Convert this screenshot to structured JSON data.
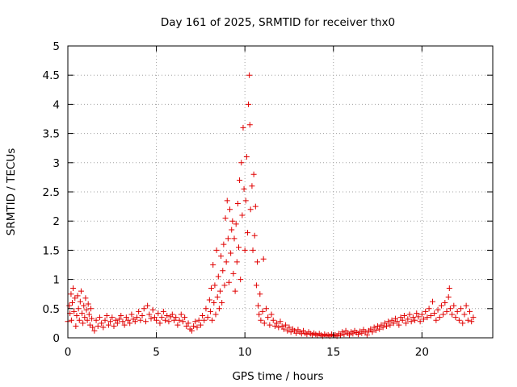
{
  "chart_data": {
    "type": "scatter",
    "title": "Day 161 of 2025, SRMTID for receiver thx0",
    "xlabel": "GPS time / hours",
    "ylabel": "SRMTID / TECUs",
    "xlim": [
      0,
      24
    ],
    "ylim": [
      0,
      5
    ],
    "xticks": [
      0,
      5,
      10,
      15,
      20
    ],
    "xtick_labels": [
      "0",
      "5",
      "10",
      "15",
      "20"
    ],
    "yticks": [
      0,
      0.5,
      1,
      1.5,
      2,
      2.5,
      3,
      3.5,
      4,
      4.5,
      5
    ],
    "ytick_labels": [
      "0",
      "0.5",
      "1",
      "1.5",
      "2",
      "2.5",
      "3",
      "3.5",
      "4",
      "4.5",
      "5"
    ],
    "grid": true,
    "marker": "+",
    "series": [
      {
        "name": "SRMTID",
        "color": "#e00000",
        "points": [
          [
            0.0,
            0.28
          ],
          [
            0.08,
            0.55
          ],
          [
            0.12,
            0.42
          ],
          [
            0.18,
            0.75
          ],
          [
            0.2,
            0.3
          ],
          [
            0.25,
            0.6
          ],
          [
            0.3,
            0.85
          ],
          [
            0.35,
            0.45
          ],
          [
            0.4,
            0.68
          ],
          [
            0.45,
            0.2
          ],
          [
            0.5,
            0.38
          ],
          [
            0.55,
            0.72
          ],
          [
            0.6,
            0.5
          ],
          [
            0.65,
            0.3
          ],
          [
            0.7,
            0.62
          ],
          [
            0.75,
            0.8
          ],
          [
            0.8,
            0.42
          ],
          [
            0.85,
            0.25
          ],
          [
            0.9,
            0.55
          ],
          [
            0.95,
            0.35
          ],
          [
            1.0,
            0.68
          ],
          [
            1.05,
            0.48
          ],
          [
            1.1,
            0.3
          ],
          [
            1.15,
            0.58
          ],
          [
            1.2,
            0.4
          ],
          [
            1.25,
            0.22
          ],
          [
            1.3,
            0.5
          ],
          [
            1.35,
            0.33
          ],
          [
            1.4,
            0.18
          ],
          [
            1.5,
            0.12
          ],
          [
            1.6,
            0.3
          ],
          [
            1.7,
            0.2
          ],
          [
            1.8,
            0.35
          ],
          [
            1.9,
            0.25
          ],
          [
            2.0,
            0.18
          ],
          [
            2.1,
            0.3
          ],
          [
            2.2,
            0.38
          ],
          [
            2.3,
            0.22
          ],
          [
            2.4,
            0.28
          ],
          [
            2.5,
            0.35
          ],
          [
            2.6,
            0.2
          ],
          [
            2.7,
            0.3
          ],
          [
            2.8,
            0.25
          ],
          [
            2.9,
            0.32
          ],
          [
            3.0,
            0.38
          ],
          [
            3.1,
            0.28
          ],
          [
            3.2,
            0.22
          ],
          [
            3.3,
            0.35
          ],
          [
            3.4,
            0.3
          ],
          [
            3.5,
            0.25
          ],
          [
            3.6,
            0.4
          ],
          [
            3.7,
            0.32
          ],
          [
            3.8,
            0.28
          ],
          [
            3.9,
            0.35
          ],
          [
            4.0,
            0.45
          ],
          [
            4.1,
            0.3
          ],
          [
            4.2,
            0.38
          ],
          [
            4.3,
            0.5
          ],
          [
            4.4,
            0.28
          ],
          [
            4.5,
            0.55
          ],
          [
            4.6,
            0.4
          ],
          [
            4.7,
            0.33
          ],
          [
            4.8,
            0.48
          ],
          [
            4.9,
            0.35
          ],
          [
            5.0,
            0.3
          ],
          [
            5.1,
            0.42
          ],
          [
            5.2,
            0.25
          ],
          [
            5.3,
            0.35
          ],
          [
            5.4,
            0.45
          ],
          [
            5.5,
            0.3
          ],
          [
            5.6,
            0.38
          ],
          [
            5.7,
            0.28
          ],
          [
            5.8,
            0.36
          ],
          [
            5.9,
            0.4
          ],
          [
            6.0,
            0.3
          ],
          [
            6.1,
            0.35
          ],
          [
            6.2,
            0.22
          ],
          [
            6.3,
            0.3
          ],
          [
            6.4,
            0.4
          ],
          [
            6.5,
            0.28
          ],
          [
            6.6,
            0.35
          ],
          [
            6.7,
            0.2
          ],
          [
            6.8,
            0.25
          ],
          [
            6.9,
            0.15
          ],
          [
            7.0,
            0.12
          ],
          [
            7.1,
            0.2
          ],
          [
            7.2,
            0.28
          ],
          [
            7.3,
            0.18
          ],
          [
            7.4,
            0.3
          ],
          [
            7.5,
            0.22
          ],
          [
            7.6,
            0.38
          ],
          [
            7.7,
            0.3
          ],
          [
            7.8,
            0.5
          ],
          [
            7.9,
            0.35
          ],
          [
            8.0,
            0.65
          ],
          [
            8.05,
            0.45
          ],
          [
            8.1,
            0.85
          ],
          [
            8.15,
            0.3
          ],
          [
            8.2,
            1.25
          ],
          [
            8.25,
            0.6
          ],
          [
            8.3,
            0.9
          ],
          [
            8.35,
            0.4
          ],
          [
            8.4,
            1.5
          ],
          [
            8.45,
            0.7
          ],
          [
            8.5,
            1.05
          ],
          [
            8.55,
            0.5
          ],
          [
            8.6,
            0.8
          ],
          [
            8.65,
            1.4
          ],
          [
            8.7,
            0.6
          ],
          [
            8.75,
            1.15
          ],
          [
            8.8,
            1.6
          ],
          [
            8.85,
            0.9
          ],
          [
            8.9,
            2.05
          ],
          [
            8.95,
            1.3
          ],
          [
            9.0,
            2.35
          ],
          [
            9.05,
            1.7
          ],
          [
            9.1,
            0.95
          ],
          [
            9.15,
            2.2
          ],
          [
            9.2,
            1.45
          ],
          [
            9.25,
            1.85
          ],
          [
            9.3,
            2.0
          ],
          [
            9.35,
            1.1
          ],
          [
            9.4,
            1.7
          ],
          [
            9.45,
            0.8
          ],
          [
            9.5,
            1.95
          ],
          [
            9.55,
            1.3
          ],
          [
            9.6,
            2.3
          ],
          [
            9.65,
            1.55
          ],
          [
            9.7,
            2.7
          ],
          [
            9.75,
            1.0
          ],
          [
            9.8,
            3.0
          ],
          [
            9.85,
            2.1
          ],
          [
            9.9,
            3.6
          ],
          [
            9.95,
            2.55
          ],
          [
            10.0,
            1.5
          ],
          [
            10.05,
            2.35
          ],
          [
            10.1,
            3.1
          ],
          [
            10.15,
            1.8
          ],
          [
            10.2,
            4.0
          ],
          [
            10.25,
            4.5
          ],
          [
            10.28,
            3.65
          ],
          [
            10.32,
            2.2
          ],
          [
            10.4,
            2.6
          ],
          [
            10.45,
            1.5
          ],
          [
            10.5,
            2.8
          ],
          [
            10.55,
            1.75
          ],
          [
            10.6,
            2.25
          ],
          [
            10.65,
            0.9
          ],
          [
            10.7,
            1.3
          ],
          [
            10.75,
            0.55
          ],
          [
            10.8,
            0.4
          ],
          [
            10.85,
            0.75
          ],
          [
            10.9,
            0.3
          ],
          [
            11.0,
            0.45
          ],
          [
            11.05,
            1.35
          ],
          [
            11.1,
            0.25
          ],
          [
            11.2,
            0.5
          ],
          [
            11.3,
            0.35
          ],
          [
            11.4,
            0.22
          ],
          [
            11.5,
            0.4
          ],
          [
            11.6,
            0.3
          ],
          [
            11.7,
            0.2
          ],
          [
            11.8,
            0.25
          ],
          [
            11.9,
            0.18
          ],
          [
            12.0,
            0.28
          ],
          [
            12.1,
            0.2
          ],
          [
            12.2,
            0.15
          ],
          [
            12.3,
            0.22
          ],
          [
            12.4,
            0.12
          ],
          [
            12.5,
            0.18
          ],
          [
            12.6,
            0.1
          ],
          [
            12.7,
            0.15
          ],
          [
            12.8,
            0.12
          ],
          [
            12.9,
            0.08
          ],
          [
            13.0,
            0.14
          ],
          [
            13.1,
            0.1
          ],
          [
            13.2,
            0.07
          ],
          [
            13.3,
            0.12
          ],
          [
            13.4,
            0.08
          ],
          [
            13.5,
            0.06
          ],
          [
            13.6,
            0.1
          ],
          [
            13.7,
            0.07
          ],
          [
            13.8,
            0.05
          ],
          [
            13.9,
            0.08
          ],
          [
            14.0,
            0.06
          ],
          [
            14.1,
            0.04
          ],
          [
            14.2,
            0.07
          ],
          [
            14.3,
            0.05
          ],
          [
            14.4,
            0.03
          ],
          [
            14.5,
            0.06
          ],
          [
            14.6,
            0.04
          ],
          [
            14.7,
            0.05
          ],
          [
            14.8,
            0.03
          ],
          [
            14.9,
            0.06
          ],
          [
            15.0,
            0.04
          ],
          [
            15.1,
            0.05
          ],
          [
            15.2,
            0.03
          ],
          [
            15.3,
            0.07
          ],
          [
            15.4,
            0.04
          ],
          [
            15.5,
            0.1
          ],
          [
            15.6,
            0.06
          ],
          [
            15.7,
            0.12
          ],
          [
            15.8,
            0.08
          ],
          [
            15.9,
            0.05
          ],
          [
            16.0,
            0.1
          ],
          [
            16.1,
            0.07
          ],
          [
            16.2,
            0.12
          ],
          [
            16.3,
            0.09
          ],
          [
            16.4,
            0.06
          ],
          [
            16.5,
            0.11
          ],
          [
            16.6,
            0.08
          ],
          [
            16.7,
            0.14
          ],
          [
            16.8,
            0.1
          ],
          [
            16.9,
            0.05
          ],
          [
            17.0,
            0.12
          ],
          [
            17.1,
            0.15
          ],
          [
            17.2,
            0.1
          ],
          [
            17.3,
            0.18
          ],
          [
            17.4,
            0.13
          ],
          [
            17.5,
            0.2
          ],
          [
            17.6,
            0.15
          ],
          [
            17.7,
            0.22
          ],
          [
            17.8,
            0.18
          ],
          [
            17.9,
            0.25
          ],
          [
            18.0,
            0.2
          ],
          [
            18.1,
            0.28
          ],
          [
            18.2,
            0.22
          ],
          [
            18.3,
            0.3
          ],
          [
            18.4,
            0.25
          ],
          [
            18.5,
            0.33
          ],
          [
            18.6,
            0.28
          ],
          [
            18.7,
            0.22
          ],
          [
            18.8,
            0.35
          ],
          [
            18.9,
            0.3
          ],
          [
            19.0,
            0.38
          ],
          [
            19.1,
            0.25
          ],
          [
            19.2,
            0.32
          ],
          [
            19.3,
            0.4
          ],
          [
            19.4,
            0.28
          ],
          [
            19.5,
            0.35
          ],
          [
            19.6,
            0.3
          ],
          [
            19.7,
            0.42
          ],
          [
            19.8,
            0.36
          ],
          [
            19.9,
            0.28
          ],
          [
            20.0,
            0.4
          ],
          [
            20.1,
            0.32
          ],
          [
            20.2,
            0.45
          ],
          [
            20.3,
            0.35
          ],
          [
            20.4,
            0.5
          ],
          [
            20.5,
            0.38
          ],
          [
            20.6,
            0.62
          ],
          [
            20.7,
            0.42
          ],
          [
            20.8,
            0.3
          ],
          [
            20.9,
            0.48
          ],
          [
            21.0,
            0.35
          ],
          [
            21.1,
            0.55
          ],
          [
            21.2,
            0.4
          ],
          [
            21.3,
            0.6
          ],
          [
            21.4,
            0.45
          ],
          [
            21.5,
            0.7
          ],
          [
            21.55,
            0.85
          ],
          [
            21.6,
            0.5
          ],
          [
            21.7,
            0.4
          ],
          [
            21.8,
            0.55
          ],
          [
            21.9,
            0.35
          ],
          [
            22.0,
            0.45
          ],
          [
            22.1,
            0.3
          ],
          [
            22.2,
            0.5
          ],
          [
            22.3,
            0.25
          ],
          [
            22.4,
            0.4
          ],
          [
            22.5,
            0.55
          ],
          [
            22.6,
            0.3
          ],
          [
            22.7,
            0.45
          ],
          [
            22.8,
            0.28
          ],
          [
            22.9,
            0.35
          ]
        ]
      }
    ]
  }
}
